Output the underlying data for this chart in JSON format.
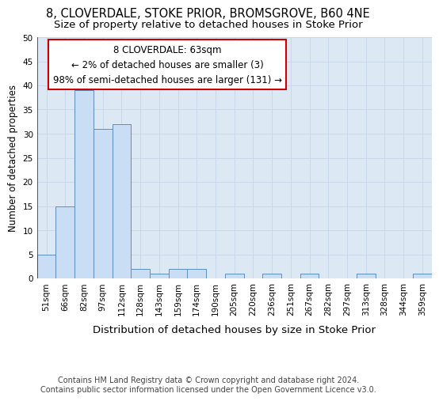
{
  "title": "8, CLOVERDALE, STOKE PRIOR, BROMSGROVE, B60 4NE",
  "subtitle": "Size of property relative to detached houses in Stoke Prior",
  "xlabel": "Distribution of detached houses by size in Stoke Prior",
  "ylabel": "Number of detached properties",
  "categories": [
    "51sqm",
    "66sqm",
    "82sqm",
    "97sqm",
    "112sqm",
    "128sqm",
    "143sqm",
    "159sqm",
    "174sqm",
    "190sqm",
    "205sqm",
    "220sqm",
    "236sqm",
    "251sqm",
    "267sqm",
    "282sqm",
    "297sqm",
    "313sqm",
    "328sqm",
    "344sqm",
    "359sqm"
  ],
  "values": [
    5,
    15,
    39,
    31,
    32,
    2,
    1,
    2,
    2,
    0,
    1,
    0,
    1,
    0,
    1,
    0,
    0,
    1,
    0,
    0,
    1
  ],
  "bar_color": "#c9ddf5",
  "bar_edge_color": "#5b8dc8",
  "highlight_color": "#cc0000",
  "annotation_title": "8 CLOVERDALE: 63sqm",
  "annotation_line1": "← 2% of detached houses are smaller (3)",
  "annotation_line2": "98% of semi-detached houses are larger (131) →",
  "annotation_box_color": "#ffffff",
  "annotation_box_edge": "#cc0000",
  "ylim": [
    0,
    50
  ],
  "yticks": [
    0,
    5,
    10,
    15,
    20,
    25,
    30,
    35,
    40,
    45,
    50
  ],
  "grid_color": "#c8d8e8",
  "bg_color": "#ffffff",
  "plot_bg_color": "#dce9f5",
  "footer_line1": "Contains HM Land Registry data © Crown copyright and database right 2024.",
  "footer_line2": "Contains public sector information licensed under the Open Government Licence v3.0.",
  "title_fontsize": 10.5,
  "subtitle_fontsize": 9.5,
  "xlabel_fontsize": 9.5,
  "ylabel_fontsize": 8.5,
  "tick_fontsize": 7.5,
  "annotation_fontsize": 8.5,
  "footer_fontsize": 7
}
